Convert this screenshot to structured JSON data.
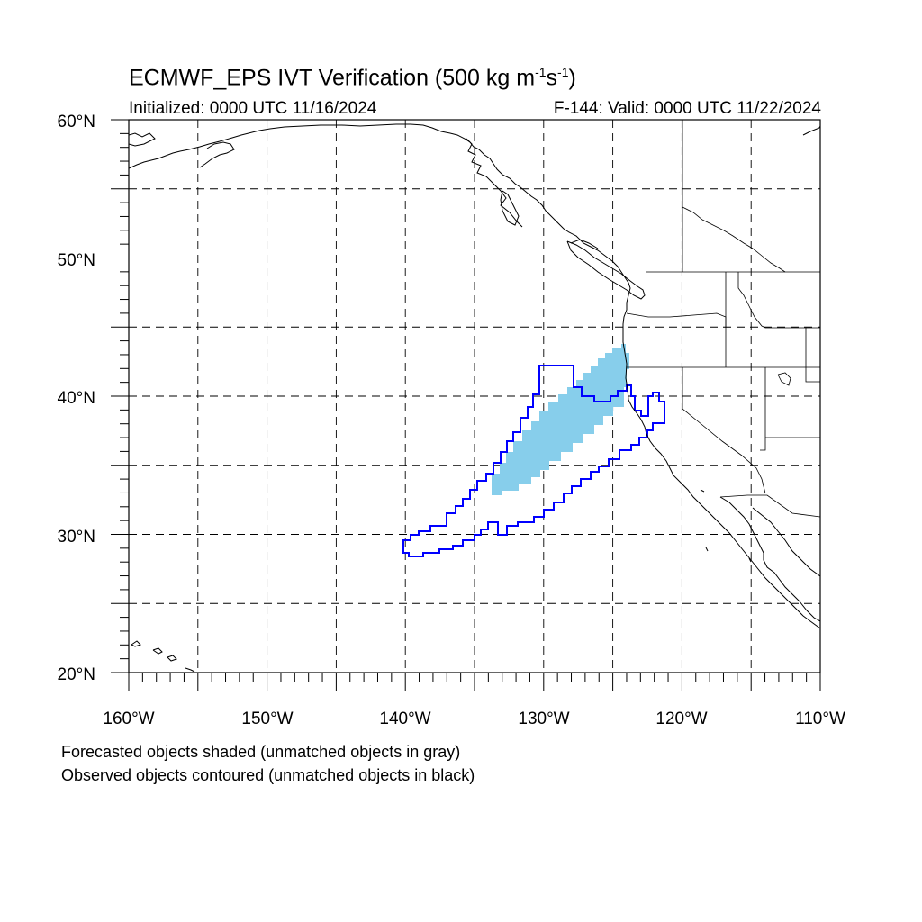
{
  "title": {
    "main": "ECMWF_EPS IVT Verification (500 kg m",
    "sup1": "-1",
    "mid": "s",
    "sup2": "-1",
    "end": ")"
  },
  "initialized": "Initialized: 0000 UTC 11/16/2024",
  "valid": "F-144: Valid: 0000 UTC 11/22/2024",
  "lat_labels": [
    "60°N",
    "50°N",
    "40°N",
    "30°N",
    "20°N"
  ],
  "lon_labels": [
    "160°W",
    "150°W",
    "140°W",
    "130°W",
    "120°W",
    "110°W"
  ],
  "footer": [
    "Forecasted objects shaded (unmatched objects in gray)",
    "Observed objects contoured (unmatched objects in black)"
  ],
  "colors": {
    "forecast_fill": "#87ceeb",
    "observed_contour": "#0000ff",
    "grid": "#000000"
  },
  "map": {
    "lon_range": [
      -160,
      -110
    ],
    "lat_range": [
      20,
      60
    ],
    "grid_spacing_deg": 5
  }
}
